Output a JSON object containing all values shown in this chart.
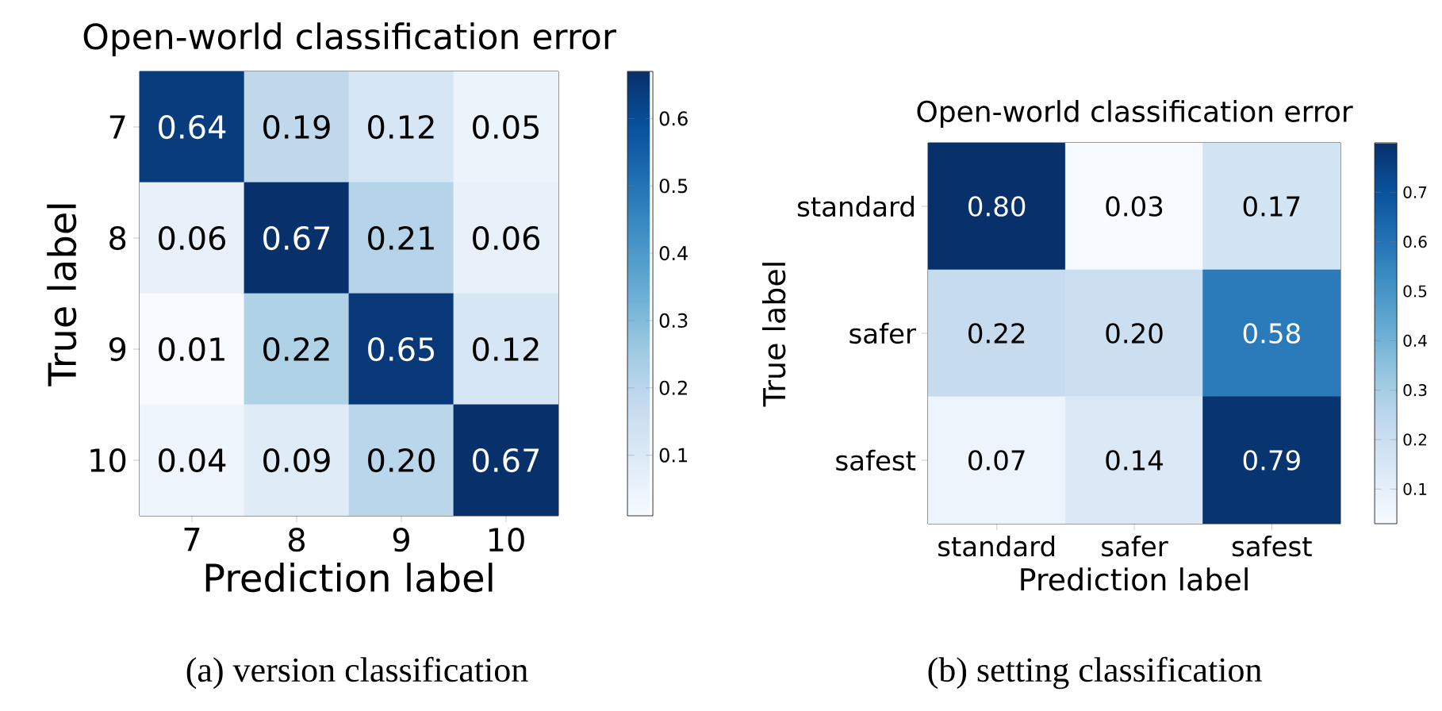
{
  "chart_data": [
    {
      "type": "heatmap",
      "title": "Open-world classification error",
      "xlabel": "Prediction label",
      "ylabel": "True label",
      "categories": [
        "7",
        "8",
        "9",
        "10"
      ],
      "y_categories": [
        "7",
        "8",
        "9",
        "10"
      ],
      "cells": [
        [
          0.64,
          0.19,
          0.12,
          0.05
        ],
        [
          0.06,
          0.67,
          0.21,
          0.06
        ],
        [
          0.01,
          0.22,
          0.65,
          0.12
        ],
        [
          0.04,
          0.09,
          0.2,
          0.67
        ]
      ],
      "cell_labels": [
        [
          "0.64",
          "0.19",
          "0.12",
          "0.05"
        ],
        [
          "0.06",
          "0.67",
          "0.21",
          "0.06"
        ],
        [
          "0.01",
          "0.22",
          "0.65",
          "0.12"
        ],
        [
          "0.04",
          "0.09",
          "0.20",
          "0.67"
        ]
      ],
      "clim": [
        0.01,
        0.67
      ],
      "cticks": [
        0.1,
        0.2,
        0.3,
        0.4,
        0.5,
        0.6
      ],
      "annotations": [
        "(a) version classification"
      ]
    },
    {
      "type": "heatmap",
      "title": "Open-world classification error",
      "xlabel": "Prediction label",
      "ylabel": "True label",
      "categories": [
        "standard",
        "safer",
        "safest"
      ],
      "y_categories": [
        "standard",
        "safer",
        "safest"
      ],
      "cells": [
        [
          0.8,
          0.03,
          0.17
        ],
        [
          0.22,
          0.2,
          0.58
        ],
        [
          0.07,
          0.14,
          0.79
        ]
      ],
      "cell_labels": [
        [
          "0.80",
          "0.03",
          "0.17"
        ],
        [
          "0.22",
          "0.20",
          "0.58"
        ],
        [
          "0.07",
          "0.14",
          "0.79"
        ]
      ],
      "clim": [
        0.03,
        0.8
      ],
      "cticks": [
        0.1,
        0.2,
        0.3,
        0.4,
        0.5,
        0.6,
        0.7
      ],
      "annotations": [
        "(b) setting classification"
      ]
    }
  ]
}
